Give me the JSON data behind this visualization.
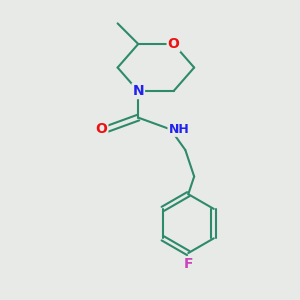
{
  "background_color": "#e8eae8",
  "bond_color": "#2d8a6b",
  "bond_width": 1.5,
  "atom_colors": {
    "O": "#ee1111",
    "N": "#2222ee",
    "F": "#cc44bb",
    "C": "#2d8a6b"
  },
  "font_size": 10,
  "fig_width": 3.0,
  "fig_height": 3.0,
  "dpi": 100
}
